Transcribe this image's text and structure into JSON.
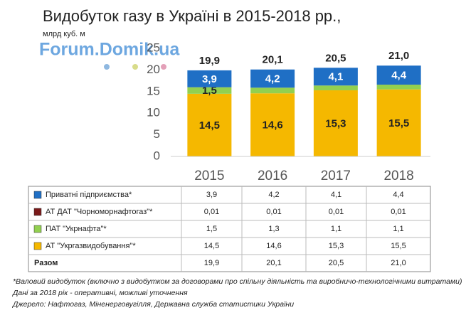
{
  "chart_data": {
    "type": "stacked_bar",
    "title": "Видобуток газу в Україні в 2015-2018 рр.,",
    "subtitle": "млрд куб. м",
    "watermark": "Forum.Domik.ua",
    "categories": [
      "2015",
      "2016",
      "2017",
      "2018"
    ],
    "series": [
      {
        "name": "Приватні підприємства*",
        "color": "#1f6fc5",
        "values": [
          3.9,
          4.2,
          4.1,
          4.4
        ],
        "value_labels": [
          "3,9",
          "4,2",
          "4,1",
          "4,4"
        ]
      },
      {
        "name": "АТ ДАТ \"Чорноморнафтогаз\"*",
        "color": "#7b1a1a",
        "values": [
          0.01,
          0.01,
          0.01,
          0.01
        ],
        "value_labels": [
          "0,01",
          "0,01",
          "0,01",
          "0,01"
        ]
      },
      {
        "name": "ПАТ \"Укрнафта\"*",
        "color": "#92d050",
        "values": [
          1.5,
          1.3,
          1.1,
          1.1
        ],
        "value_labels": [
          "1,5",
          "1,3",
          "1,1",
          "1,1"
        ]
      },
      {
        "name": "АТ \"Укргазвидобування\"*",
        "color": "#f5b800",
        "values": [
          14.5,
          14.6,
          15.3,
          15.5
        ],
        "value_labels": [
          "14,5",
          "14,6",
          "15,3",
          "15,5"
        ]
      }
    ],
    "totals": {
      "name": "Разом",
      "values": [
        19.9,
        20.1,
        20.5,
        21.0
      ],
      "value_labels": [
        "19,9",
        "20,1",
        "20,5",
        "21,0"
      ]
    },
    "ylim": [
      0,
      25
    ],
    "yticks": [
      0,
      5,
      10,
      15,
      20,
      25
    ],
    "notes": [
      "*Валовий видобуток (включно з видобутком за договорами про спільну діяльність та виробничо-технологічними витратами)",
      "Дані за 2018 рік - оперативні, можливі уточнення",
      "Джерело: Нафтогаз, Міненерговугілля, Державна служба статистики України"
    ]
  }
}
